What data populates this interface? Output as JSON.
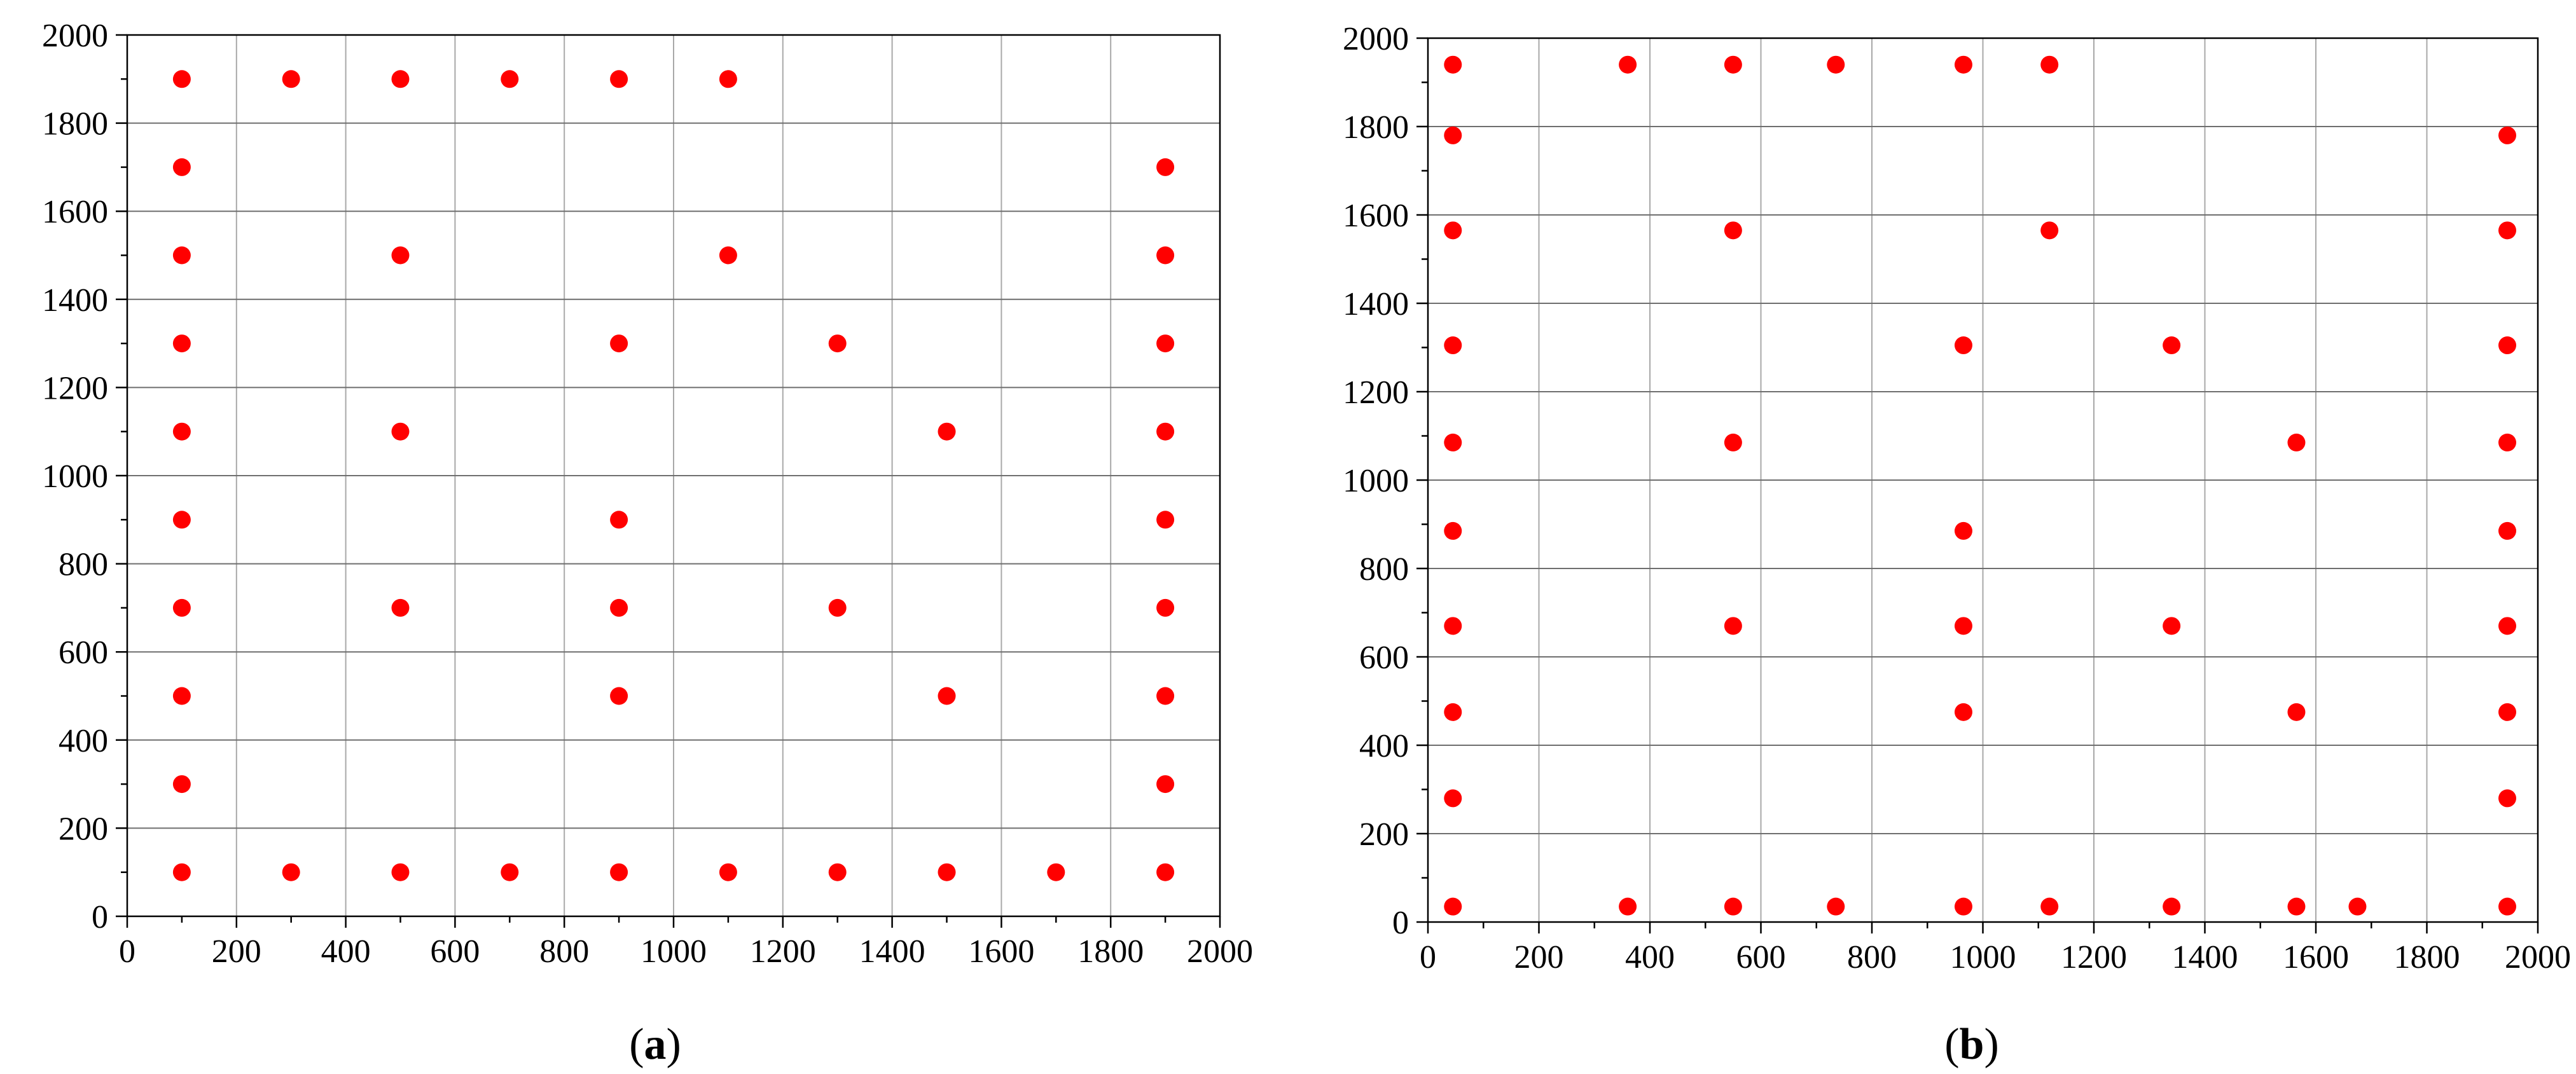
{
  "chart_data": [
    {
      "type": "scatter",
      "caption_open": "(",
      "caption_letter": "a",
      "caption_close": ")",
      "xlim": [
        0,
        2000
      ],
      "ylim": [
        0,
        2000
      ],
      "xticks": [
        "0",
        "200",
        "400",
        "600",
        "800",
        "1000",
        "1200",
        "1400",
        "1600",
        "1800",
        "2000"
      ],
      "yticks": [
        "0",
        "200",
        "400",
        "600",
        "800",
        "1000",
        "1200",
        "1400",
        "1600",
        "1800",
        "2000"
      ],
      "grid": true,
      "marker_color": "#ff0000",
      "points": [
        [
          100,
          1900
        ],
        [
          300,
          1900
        ],
        [
          500,
          1900
        ],
        [
          700,
          1900
        ],
        [
          900,
          1900
        ],
        [
          1100,
          1900
        ],
        [
          100,
          1700
        ],
        [
          1900,
          1700
        ],
        [
          100,
          1500
        ],
        [
          500,
          1500
        ],
        [
          1100,
          1500
        ],
        [
          1900,
          1500
        ],
        [
          100,
          1300
        ],
        [
          900,
          1300
        ],
        [
          1300,
          1300
        ],
        [
          1900,
          1300
        ],
        [
          100,
          1100
        ],
        [
          500,
          1100
        ],
        [
          1500,
          1100
        ],
        [
          1900,
          1100
        ],
        [
          100,
          900
        ],
        [
          900,
          900
        ],
        [
          1900,
          900
        ],
        [
          100,
          700
        ],
        [
          500,
          700
        ],
        [
          900,
          700
        ],
        [
          1300,
          700
        ],
        [
          1900,
          700
        ],
        [
          100,
          500
        ],
        [
          900,
          500
        ],
        [
          1500,
          500
        ],
        [
          1900,
          500
        ],
        [
          100,
          300
        ],
        [
          1900,
          300
        ],
        [
          100,
          100
        ],
        [
          300,
          100
        ],
        [
          500,
          100
        ],
        [
          700,
          100
        ],
        [
          900,
          100
        ],
        [
          1100,
          100
        ],
        [
          1300,
          100
        ],
        [
          1500,
          100
        ],
        [
          1700,
          100
        ],
        [
          1900,
          100
        ]
      ]
    },
    {
      "type": "scatter",
      "caption_open": "(",
      "caption_letter": "b",
      "caption_close": ")",
      "xlim": [
        0,
        2000
      ],
      "ylim": [
        0,
        2000
      ],
      "xticks": [
        "0",
        "200",
        "400",
        "600",
        "800",
        "1000",
        "1200",
        "1400",
        "1600",
        "1800",
        "2000"
      ],
      "yticks": [
        "0",
        "200",
        "400",
        "600",
        "800",
        "1000",
        "1200",
        "1400",
        "1600",
        "1800",
        "2000"
      ],
      "grid": true,
      "marker_color": "#ff0000",
      "points": [
        [
          45,
          1940
        ],
        [
          360,
          1940
        ],
        [
          550,
          1940
        ],
        [
          735,
          1940
        ],
        [
          965,
          1940
        ],
        [
          1120,
          1940
        ],
        [
          45,
          1780
        ],
        [
          1945,
          1780
        ],
        [
          45,
          1565
        ],
        [
          550,
          1565
        ],
        [
          1120,
          1565
        ],
        [
          1945,
          1565
        ],
        [
          45,
          1305
        ],
        [
          965,
          1305
        ],
        [
          1340,
          1305
        ],
        [
          1945,
          1305
        ],
        [
          45,
          1085
        ],
        [
          550,
          1085
        ],
        [
          1565,
          1085
        ],
        [
          1945,
          1085
        ],
        [
          45,
          885
        ],
        [
          965,
          885
        ],
        [
          1945,
          885
        ],
        [
          45,
          670
        ],
        [
          550,
          670
        ],
        [
          965,
          670
        ],
        [
          1340,
          670
        ],
        [
          1945,
          670
        ],
        [
          45,
          475
        ],
        [
          965,
          475
        ],
        [
          1565,
          475
        ],
        [
          1945,
          475
        ],
        [
          45,
          280
        ],
        [
          1945,
          280
        ],
        [
          45,
          35
        ],
        [
          360,
          35
        ],
        [
          550,
          35
        ],
        [
          735,
          35
        ],
        [
          965,
          35
        ],
        [
          1120,
          35
        ],
        [
          1340,
          35
        ],
        [
          1565,
          35
        ],
        [
          1675,
          35
        ],
        [
          1945,
          35
        ]
      ]
    }
  ]
}
